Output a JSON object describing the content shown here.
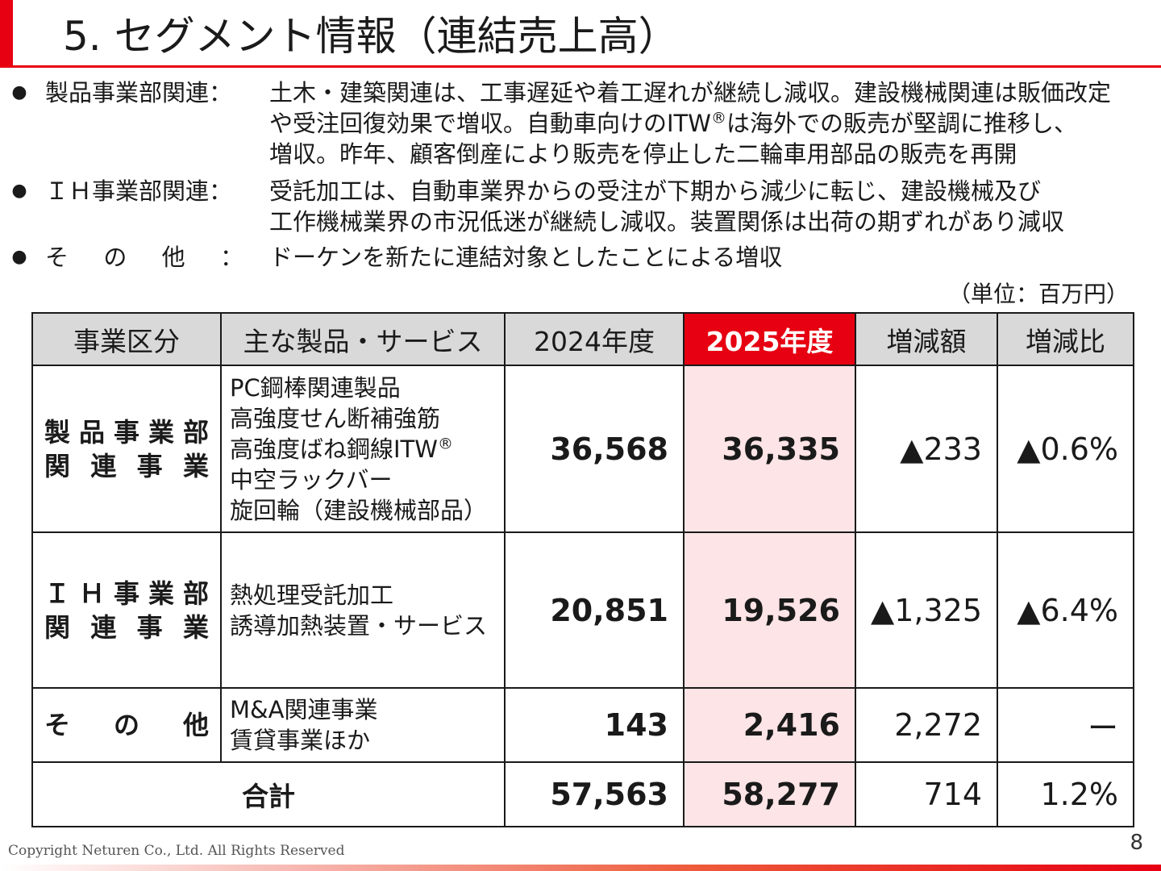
{
  "title": "5. セグメント情報（連結売上高）",
  "bullets": [
    {
      "category": "製品事業部関連：",
      "lines": [
        "土木・建築関連は、工事遅延や着工遅れが継続し減収。建設機械関連は販価改定",
        "や受注回復効果で増収。自動車向けのITW",
        "は海外での販売が堅調に推移し、",
        "増収。昨年、顧客倒産により販売を停止した二輪車用部品の販売を再開"
      ]
    },
    {
      "category": "ＩＨ事業部関連：",
      "lines": [
        "受託加工は、自動車業界からの受注が下期から減少に転じ、建設機械及び",
        "工作機械業界の市況低迷が継続し減収。装置関係は出荷の期ずれがあり減収"
      ]
    },
    {
      "category": [
        "そ",
        "の",
        "他",
        "："
      ],
      "lines": [
        "ドーケンを新たに連結対象としたことによる増収"
      ]
    }
  ],
  "registered_mark": "®",
  "unit": "（単位：百万円）",
  "table": {
    "headers": [
      "事業区分",
      "主な製品・サービス",
      "2024年度",
      "2025年度",
      "増減額",
      "増減比"
    ],
    "rows": [
      {
        "segment": [
          [
            "製",
            "品",
            "事",
            "業",
            "部"
          ],
          [
            "関",
            "連",
            "事",
            "業"
          ]
        ],
        "products": [
          "PC鋼棒関連製品",
          "高強度せん断補強筋",
          "高強度ばね鋼線ITW",
          "中空ラックバー",
          "旋回輪（建設機械部品）"
        ],
        "fy2024": "36,568",
        "fy2025": "36,335",
        "change": "▲233",
        "ratio": "▲0.6%"
      },
      {
        "segment": [
          [
            "Ｉ",
            "Ｈ",
            "事",
            "業",
            "部"
          ],
          [
            "関",
            "連",
            "事",
            "業"
          ]
        ],
        "products": [
          "熱処理受託加工",
          "誘導加熱装置・サービス"
        ],
        "fy2024": "20,851",
        "fy2025": "19,526",
        "change": "▲1,325",
        "ratio": "▲6.4%"
      },
      {
        "segment": [
          [
            "そ",
            "の",
            "他"
          ]
        ],
        "products": [
          "M&A関連事業",
          "賃貸事業ほか"
        ],
        "fy2024": "143",
        "fy2025": "2,416",
        "change": "2,272",
        "ratio": "ー"
      }
    ],
    "total": {
      "label": "合計",
      "fy2024": "57,563",
      "fy2025": "58,277",
      "change": "714",
      "ratio": "1.2%"
    }
  },
  "footer": {
    "copyright": "Copyright Neturen Co., Ltd. All Rights Reserved",
    "page": "8"
  },
  "colors": {
    "accent": "#e60012",
    "header_gray": "#d9d9d9",
    "highlight_column": "#fde4e6"
  }
}
